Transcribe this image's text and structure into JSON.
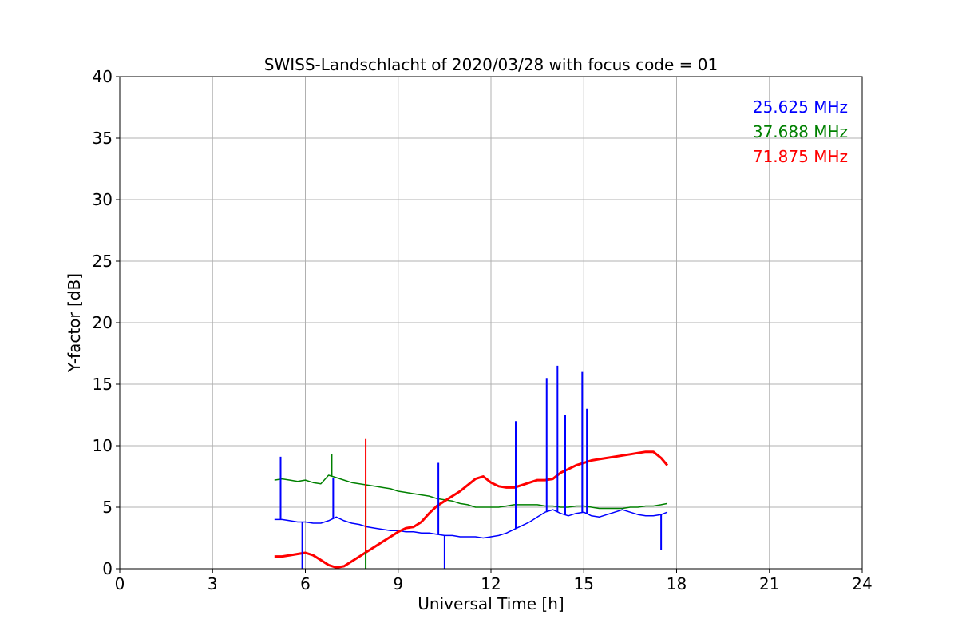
{
  "chart_data": {
    "type": "line",
    "title": "SWISS-Landschlacht of 2020/03/28 with focus code = 01",
    "xlabel": "Universal Time [h]",
    "ylabel": "Y-factor [dB]",
    "xlim": [
      0,
      24
    ],
    "ylim": [
      0,
      40
    ],
    "xticks": [
      0,
      3,
      6,
      9,
      12,
      15,
      18,
      21,
      24
    ],
    "yticks": [
      0,
      5,
      10,
      15,
      20,
      25,
      30,
      35,
      40
    ],
    "grid": true,
    "legend_position": "top-right",
    "series": [
      {
        "name": "25.625 MHz",
        "color": "#0000ff",
        "x": [
          5.0,
          5.25,
          5.5,
          5.75,
          6.0,
          6.25,
          6.5,
          6.75,
          7.0,
          7.25,
          7.5,
          7.75,
          8.0,
          8.25,
          8.5,
          8.75,
          9.0,
          9.25,
          9.5,
          9.75,
          10.0,
          10.25,
          10.5,
          10.75,
          11.0,
          11.25,
          11.5,
          11.75,
          12.0,
          12.25,
          12.5,
          12.75,
          13.0,
          13.25,
          13.5,
          13.75,
          14.0,
          14.25,
          14.5,
          14.75,
          15.0,
          15.25,
          15.5,
          15.75,
          16.0,
          16.25,
          16.5,
          16.75,
          17.0,
          17.25,
          17.5,
          17.7
        ],
        "y": [
          4.0,
          4.0,
          3.9,
          3.8,
          3.8,
          3.7,
          3.7,
          3.9,
          4.2,
          3.9,
          3.7,
          3.6,
          3.4,
          3.3,
          3.2,
          3.1,
          3.1,
          3.0,
          3.0,
          2.9,
          2.9,
          2.8,
          2.7,
          2.7,
          2.6,
          2.6,
          2.6,
          2.5,
          2.6,
          2.7,
          2.9,
          3.2,
          3.5,
          3.8,
          4.2,
          4.6,
          4.8,
          4.5,
          4.3,
          4.5,
          4.6,
          4.3,
          4.2,
          4.4,
          4.6,
          4.8,
          4.6,
          4.4,
          4.3,
          4.3,
          4.4,
          4.6
        ]
      },
      {
        "name": "37.688 MHz",
        "color": "#008000",
        "x": [
          5.0,
          5.25,
          5.5,
          5.75,
          6.0,
          6.25,
          6.5,
          6.75,
          7.0,
          7.25,
          7.5,
          7.75,
          8.0,
          8.25,
          8.5,
          8.75,
          9.0,
          9.25,
          9.5,
          9.75,
          10.0,
          10.25,
          10.5,
          10.75,
          11.0,
          11.25,
          11.5,
          11.75,
          12.0,
          12.25,
          12.5,
          12.75,
          13.0,
          13.25,
          13.5,
          13.75,
          14.0,
          14.25,
          14.5,
          14.75,
          15.0,
          15.25,
          15.5,
          15.75,
          16.0,
          16.25,
          16.5,
          16.75,
          17.0,
          17.25,
          17.5,
          17.7
        ],
        "y": [
          7.2,
          7.3,
          7.2,
          7.1,
          7.2,
          7.0,
          6.9,
          7.6,
          7.4,
          7.2,
          7.0,
          6.9,
          6.8,
          6.7,
          6.6,
          6.5,
          6.3,
          6.2,
          6.1,
          6.0,
          5.9,
          5.7,
          5.6,
          5.5,
          5.3,
          5.2,
          5.0,
          5.0,
          5.0,
          5.0,
          5.1,
          5.2,
          5.2,
          5.2,
          5.2,
          5.1,
          5.1,
          5.0,
          5.0,
          5.1,
          5.1,
          5.0,
          4.9,
          4.9,
          4.9,
          4.9,
          5.0,
          5.0,
          5.1,
          5.1,
          5.2,
          5.3
        ]
      },
      {
        "name": "71.875 MHz",
        "color": "#ff0000",
        "x": [
          5.0,
          5.25,
          5.5,
          5.75,
          6.0,
          6.25,
          6.5,
          6.75,
          7.0,
          7.25,
          7.5,
          7.75,
          8.0,
          8.25,
          8.5,
          8.75,
          9.0,
          9.25,
          9.5,
          9.75,
          10.0,
          10.25,
          10.5,
          10.75,
          11.0,
          11.25,
          11.5,
          11.75,
          12.0,
          12.25,
          12.5,
          12.75,
          13.0,
          13.25,
          13.5,
          13.75,
          14.0,
          14.25,
          14.5,
          14.75,
          15.0,
          15.25,
          15.5,
          15.75,
          16.0,
          16.25,
          16.5,
          16.75,
          17.0,
          17.25,
          17.5,
          17.7
        ],
        "y": [
          1.0,
          1.0,
          1.1,
          1.2,
          1.3,
          1.1,
          0.7,
          0.3,
          0.1,
          0.2,
          0.6,
          1.0,
          1.4,
          1.8,
          2.2,
          2.6,
          3.0,
          3.3,
          3.4,
          3.8,
          4.5,
          5.1,
          5.5,
          5.9,
          6.3,
          6.8,
          7.3,
          7.5,
          7.0,
          6.7,
          6.6,
          6.6,
          6.8,
          7.0,
          7.2,
          7.2,
          7.3,
          7.8,
          8.1,
          8.4,
          8.6,
          8.8,
          8.9,
          9.0,
          9.1,
          9.2,
          9.3,
          9.4,
          9.5,
          9.5,
          9.0,
          8.4
        ]
      }
    ],
    "spikes": [
      {
        "series": 0,
        "x": 5.2,
        "y": 9.1
      },
      {
        "series": 0,
        "x": 5.9,
        "y": 0.0
      },
      {
        "series": 0,
        "x": 6.9,
        "y": 7.4
      },
      {
        "series": 0,
        "x": 10.3,
        "y": 8.6
      },
      {
        "series": 0,
        "x": 10.5,
        "y": 0.0
      },
      {
        "series": 0,
        "x": 12.8,
        "y": 12.0
      },
      {
        "series": 0,
        "x": 13.8,
        "y": 15.5
      },
      {
        "series": 0,
        "x": 14.15,
        "y": 16.5
      },
      {
        "series": 0,
        "x": 14.4,
        "y": 12.5
      },
      {
        "series": 0,
        "x": 14.95,
        "y": 16.0
      },
      {
        "series": 0,
        "x": 15.1,
        "y": 13.0
      },
      {
        "series": 0,
        "x": 17.5,
        "y": 1.5
      },
      {
        "series": 1,
        "x": 7.95,
        "y": 0.0
      },
      {
        "series": 1,
        "x": 6.85,
        "y": 9.3
      },
      {
        "series": 2,
        "x": 7.95,
        "y": 10.6
      }
    ]
  }
}
